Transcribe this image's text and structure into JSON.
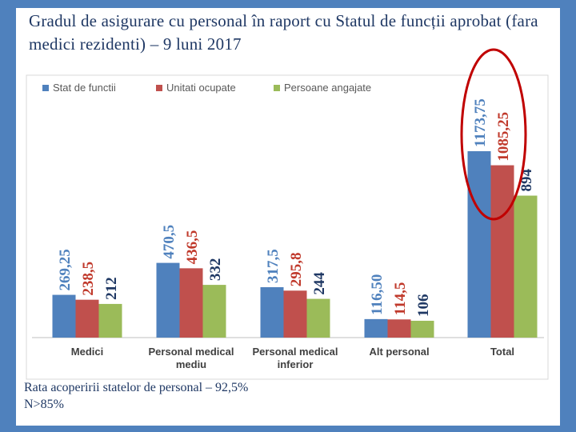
{
  "title": "Gradul de asigurare cu personal în raport cu Statul de funcții aprobat (fara medici rezidenti) – 9 luni 2017",
  "chart_data": {
    "type": "bar",
    "categories": [
      [
        "Medici"
      ],
      [
        "Personal medical",
        "mediu"
      ],
      [
        "Personal medical",
        "inferior"
      ],
      [
        "Alt personal"
      ],
      [
        "Total"
      ]
    ],
    "series": [
      {
        "name": "Stat de functii",
        "color": "#4f81bd",
        "label_color": "#4f81bd",
        "values": [
          269.25,
          470.5,
          317.5,
          116.5,
          1173.75
        ],
        "labels": [
          "269,25",
          "470,5",
          "317,5",
          "116,50",
          "1173,75"
        ]
      },
      {
        "name": "Unitati ocupate",
        "color": "#c0504d",
        "label_color": "#c0392b",
        "values": [
          238.5,
          436.5,
          295.8,
          114.5,
          1085.25
        ],
        "labels": [
          "238,5",
          "436,5",
          "295,8",
          "114,5",
          "1085,25"
        ]
      },
      {
        "name": "Persoane angajate",
        "color": "#9bbb59",
        "label_color": "#1f3864",
        "values": [
          212,
          332,
          244,
          106,
          894
        ],
        "labels": [
          "212",
          "332",
          "244",
          "106",
          "894"
        ]
      }
    ],
    "ylim": [
      0,
      1350
    ],
    "legend": "top-left",
    "grid": false,
    "highlight": {
      "category": "Total",
      "shape": "ellipse",
      "color": "#c00000"
    }
  },
  "footer": {
    "line1": "Rata acoperirii statelor de personal – 92,5%",
    "line2": "N>85%"
  }
}
